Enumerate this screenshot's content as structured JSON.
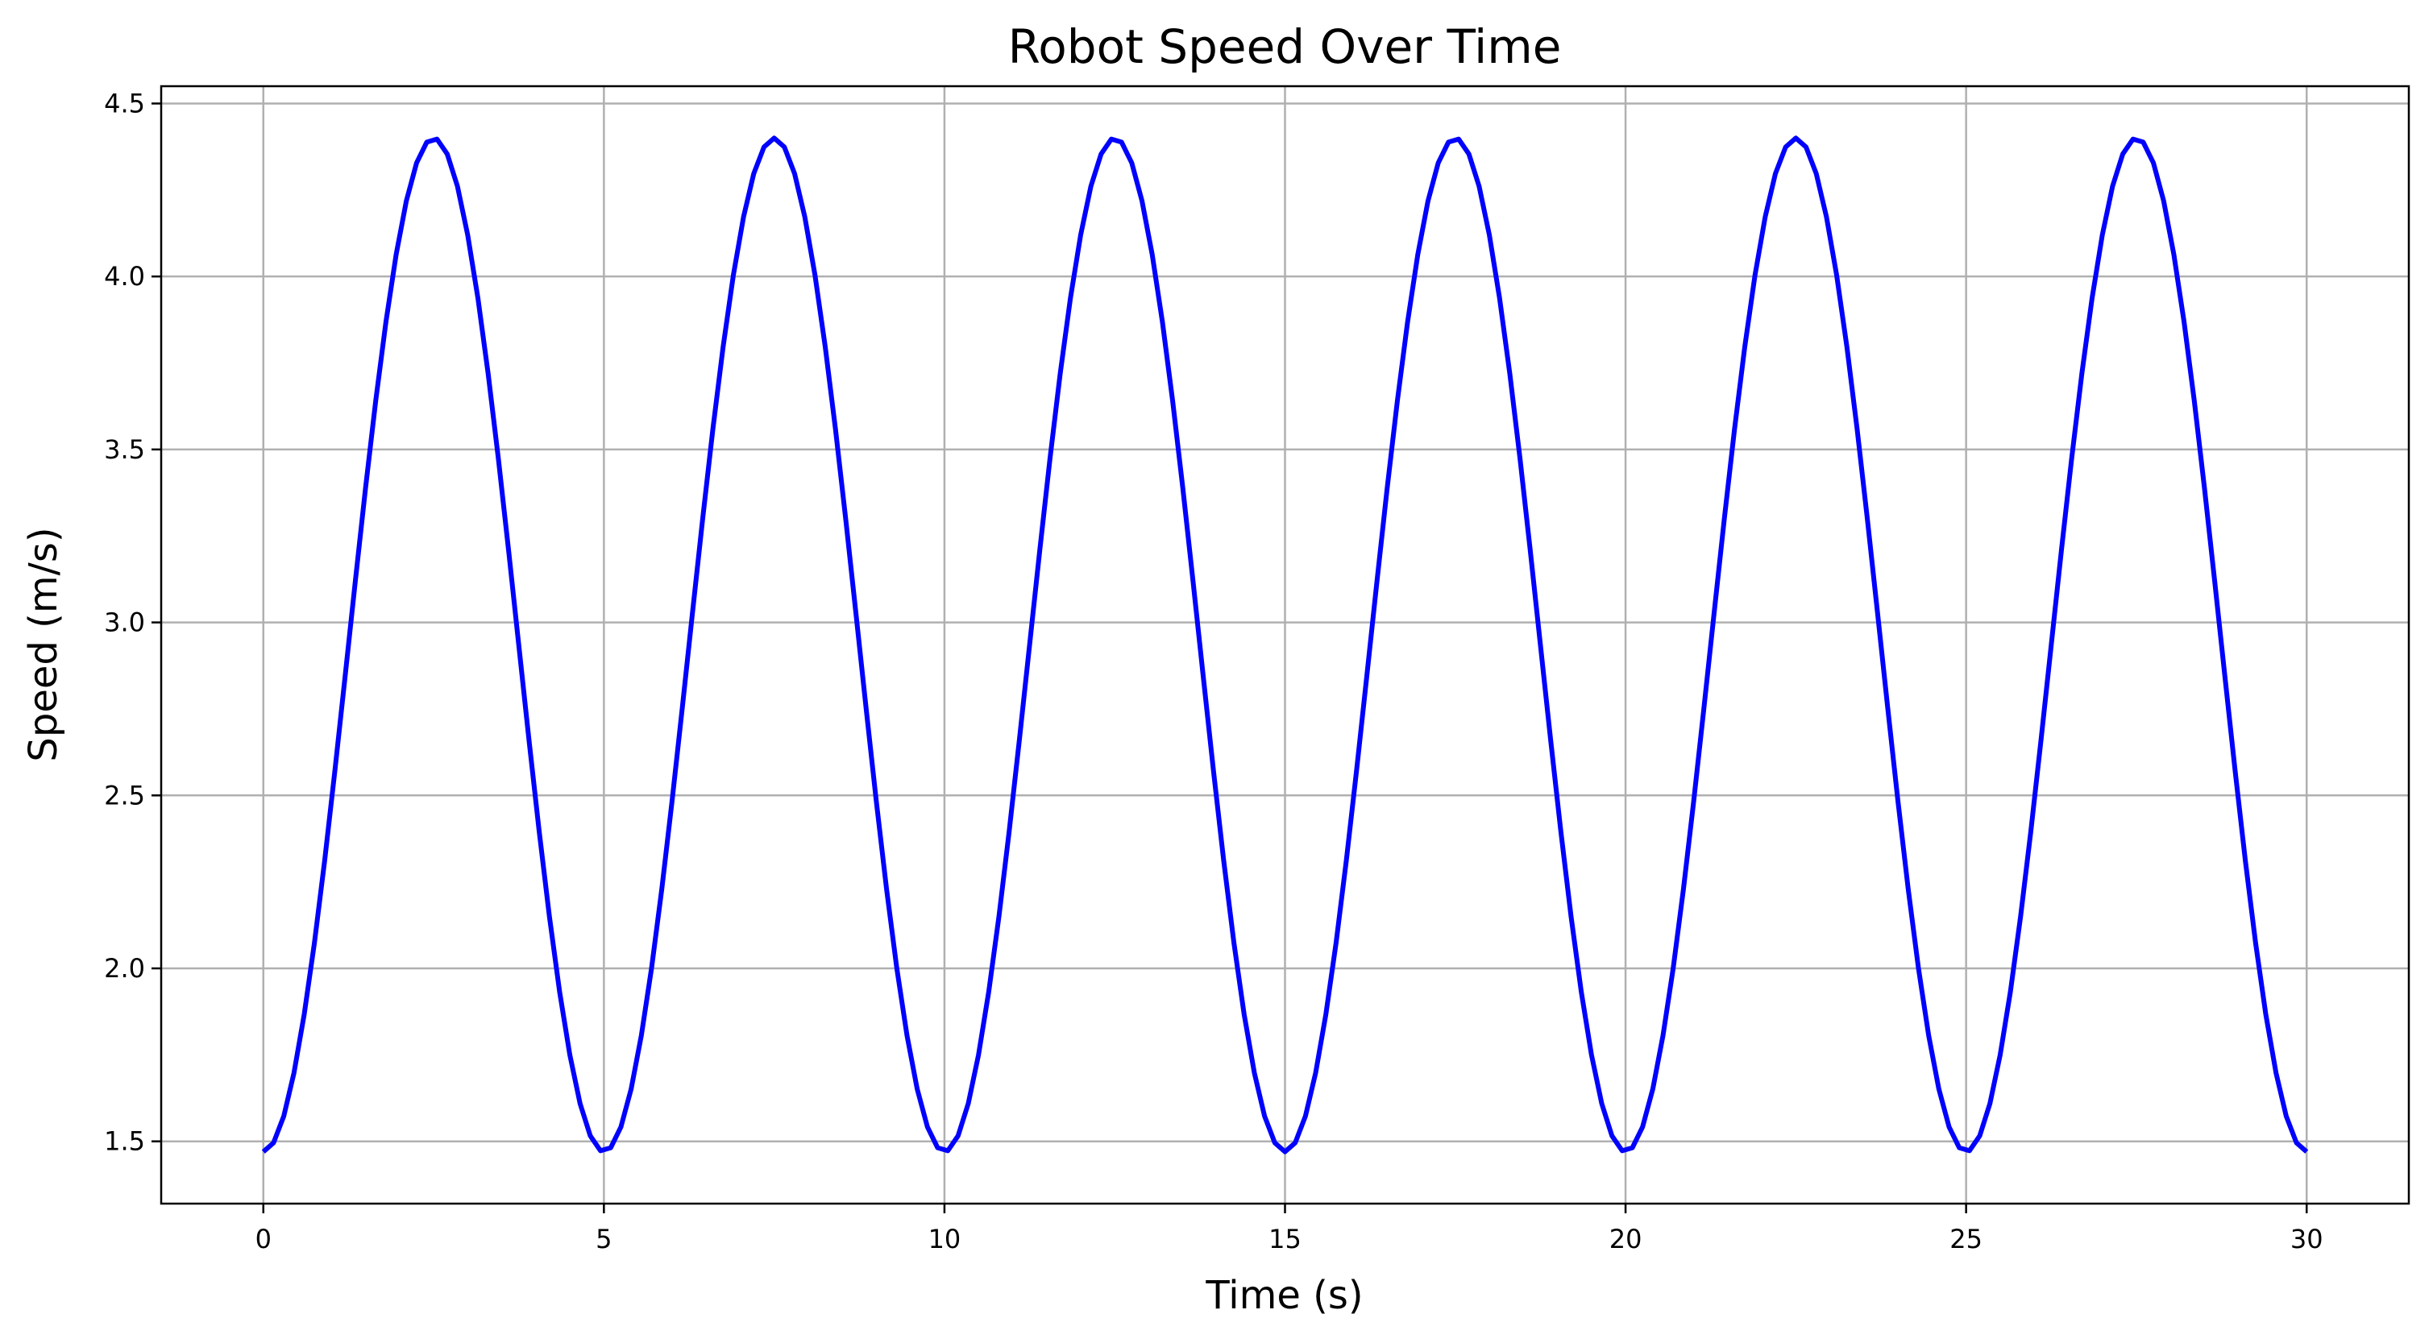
{
  "chart_data": {
    "type": "line",
    "title": "Robot Speed Over Time",
    "xlabel": "Time (s)",
    "ylabel": "Speed (m/s)",
    "xlim": [
      -1.5,
      31.5
    ],
    "ylim": [
      1.32,
      4.55
    ],
    "xticks": [
      0,
      5,
      10,
      15,
      20,
      25,
      30
    ],
    "yticks": [
      1.5,
      2.0,
      2.5,
      3.0,
      3.5,
      4.0,
      4.5
    ],
    "grid": true,
    "legend": "none",
    "series": [
      {
        "name": "speed",
        "color": "#0000ff",
        "function": "1.47 + 2.93 * sin^2(pi * t / 5)",
        "x_start": 0,
        "x_end": 30,
        "x_step": 0.15,
        "peaks": [
          {
            "x": 2.5,
            "y": 4.4
          },
          {
            "x": 7.5,
            "y": 4.4
          },
          {
            "x": 12.5,
            "y": 4.4
          },
          {
            "x": 17.5,
            "y": 4.4
          },
          {
            "x": 22.5,
            "y": 4.4
          },
          {
            "x": 27.5,
            "y": 4.4
          }
        ],
        "troughs": [
          {
            "x": 0,
            "y": 1.47
          },
          {
            "x": 5,
            "y": 1.47
          },
          {
            "x": 10,
            "y": 1.47
          },
          {
            "x": 15,
            "y": 1.47
          },
          {
            "x": 20,
            "y": 1.47
          },
          {
            "x": 25,
            "y": 1.47
          },
          {
            "x": 30,
            "y": 1.47
          }
        ]
      }
    ]
  }
}
